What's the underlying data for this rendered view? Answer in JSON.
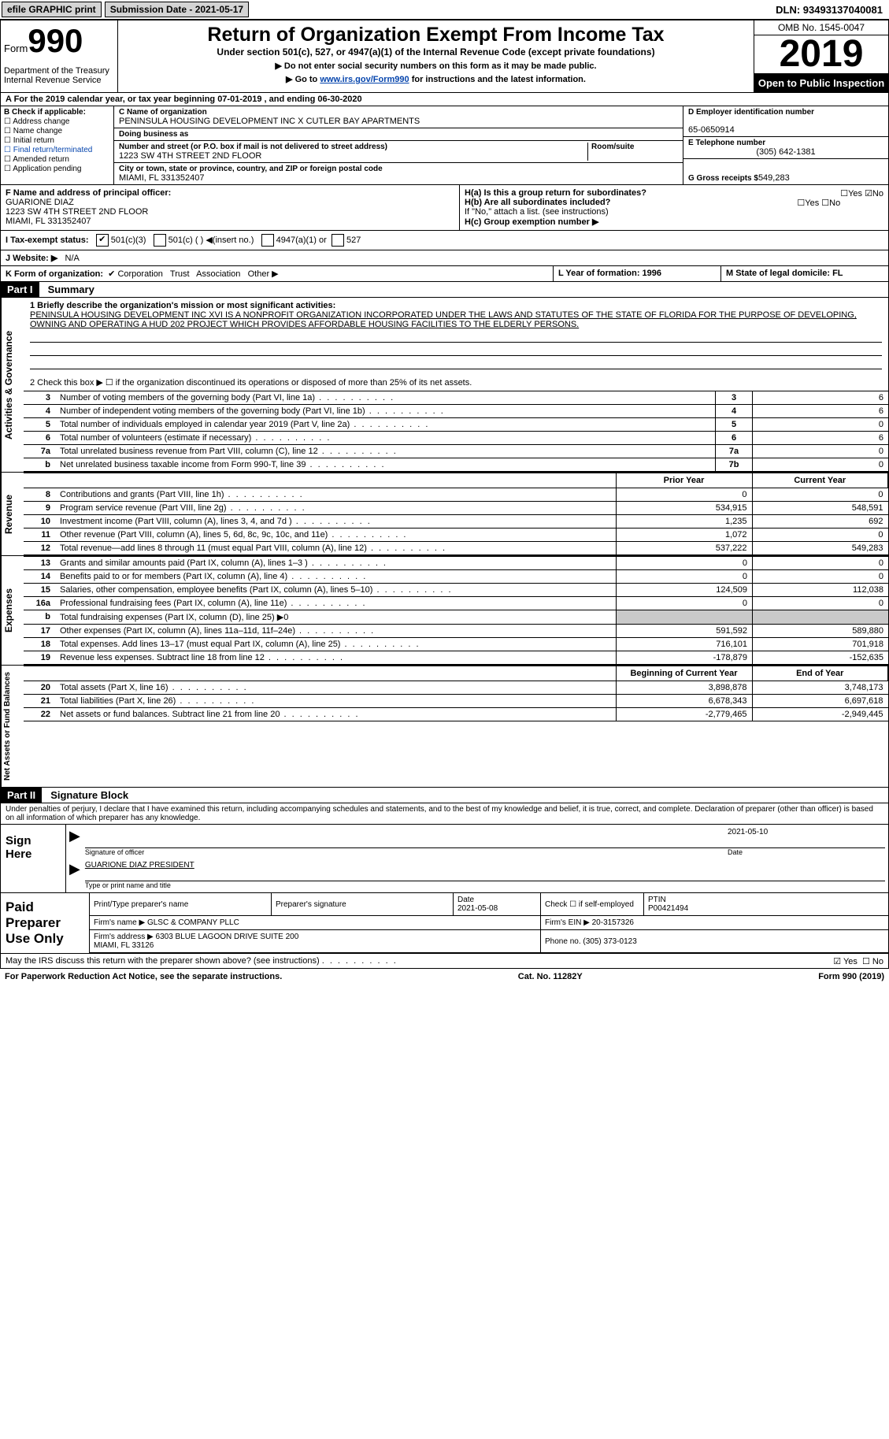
{
  "topbar": {
    "efile": "efile GRAPHIC print",
    "submission": "Submission Date - 2021-05-17",
    "dln": "DLN: 93493137040081"
  },
  "header": {
    "form_prefix": "Form",
    "form_num": "990",
    "dept": "Department of the Treasury\nInternal Revenue Service",
    "title": "Return of Organization Exempt From Income Tax",
    "subtitle": "Under section 501(c), 527, or 4947(a)(1) of the Internal Revenue Code (except private foundations)",
    "instr1": "▶ Do not enter social security numbers on this form as it may be made public.",
    "instr2_pre": "▶ Go to ",
    "instr2_link": "www.irs.gov/Form990",
    "instr2_post": " for instructions and the latest information.",
    "omb": "OMB No. 1545-0047",
    "year": "2019",
    "open": "Open to Public Inspection"
  },
  "period": "A For the 2019 calendar year, or tax year beginning 07-01-2019     , and ending 06-30-2020",
  "section_b": {
    "label": "B Check if applicable:",
    "items": [
      "Address change",
      "Name change",
      "Initial return",
      "Final return/terminated",
      "Amended return",
      "Application pending"
    ]
  },
  "section_c": {
    "name_label": "C Name of organization",
    "name": "PENINSULA HOUSING DEVELOPMENT INC X CUTLER BAY APARTMENTS",
    "dba_label": "Doing business as",
    "addr_label": "Number and street (or P.O. box if mail is not delivered to street address)",
    "room_label": "Room/suite",
    "addr": "1223 SW 4TH STREET 2ND FLOOR",
    "city_label": "City or town, state or province, country, and ZIP or foreign postal code",
    "city": "MIAMI, FL  331352407"
  },
  "section_d": {
    "ein_label": "D Employer identification number",
    "ein": "65-0650914",
    "phone_label": "E Telephone number",
    "phone": "(305) 642-1381",
    "gross_label": "G Gross receipts $",
    "gross": "549,283"
  },
  "section_f": {
    "label": "F  Name and address of principal officer:",
    "name": "GUARIONE DIAZ",
    "addr1": "1223 SW 4TH STREET 2ND FLOOR",
    "addr2": "MIAMI, FL  331352407"
  },
  "section_h": {
    "ha": "H(a)  Is this a group return for subordinates?",
    "hb": "H(b)  Are all subordinates included?",
    "hb_note": "If \"No,\" attach a list. (see instructions)",
    "hc": "H(c)  Group exemption number ▶"
  },
  "tax_exempt": {
    "label": "I  Tax-exempt status:",
    "o1": "501(c)(3)",
    "o2": "501(c) (  ) ◀(insert no.)",
    "o3": "4947(a)(1) or",
    "o4": "527"
  },
  "website": {
    "label": "J  Website: ▶",
    "value": "N/A"
  },
  "k_row": {
    "label": "K Form of organization:",
    "o1": "Corporation",
    "o2": "Trust",
    "o3": "Association",
    "o4": "Other ▶"
  },
  "lm": {
    "l": "L Year of formation: 1996",
    "m": "M State of legal domicile: FL"
  },
  "part1": {
    "header": "Part I",
    "title": "Summary",
    "q1": "1  Briefly describe the organization's mission or most significant activities:",
    "mission": "PENINSULA HOUSING DEVELOPMENT INC XVI IS A NONPROFIT ORGANIZATION INCORPORATED UNDER THE LAWS AND STATUTES OF THE STATE OF FLORIDA FOR THE PURPOSE OF DEVELOPING, OWNING AND OPERATING A HUD 202 PROJECT WHICH PROVIDES AFFORDABLE HOUSING FACILITIES TO THE ELDERLY PERSONS.",
    "q2": "2    Check this box ▶ ☐  if the organization discontinued its operations or disposed of more than 25% of its net assets.",
    "governance_label": "Activities & Governance",
    "revenue_label": "Revenue",
    "expenses_label": "Expenses",
    "netassets_label": "Net Assets or Fund Balances",
    "rows_gov": [
      {
        "n": "3",
        "text": "Number of voting members of the governing body (Part VI, line 1a)",
        "box": "3",
        "val": "6"
      },
      {
        "n": "4",
        "text": "Number of independent voting members of the governing body (Part VI, line 1b)",
        "box": "4",
        "val": "6"
      },
      {
        "n": "5",
        "text": "Total number of individuals employed in calendar year 2019 (Part V, line 2a)",
        "box": "5",
        "val": "0"
      },
      {
        "n": "6",
        "text": "Total number of volunteers (estimate if necessary)",
        "box": "6",
        "val": "6"
      },
      {
        "n": "7a",
        "text": "Total unrelated business revenue from Part VIII, column (C), line 12",
        "box": "7a",
        "val": "0"
      },
      {
        "n": "b",
        "text": "Net unrelated business taxable income from Form 990-T, line 39",
        "box": "7b",
        "val": "0"
      }
    ],
    "col_headers": {
      "prior": "Prior Year",
      "current": "Current Year"
    },
    "rows_rev": [
      {
        "n": "8",
        "text": "Contributions and grants (Part VIII, line 1h)",
        "p": "0",
        "c": "0"
      },
      {
        "n": "9",
        "text": "Program service revenue (Part VIII, line 2g)",
        "p": "534,915",
        "c": "548,591"
      },
      {
        "n": "10",
        "text": "Investment income (Part VIII, column (A), lines 3, 4, and 7d )",
        "p": "1,235",
        "c": "692"
      },
      {
        "n": "11",
        "text": "Other revenue (Part VIII, column (A), lines 5, 6d, 8c, 9c, 10c, and 11e)",
        "p": "1,072",
        "c": "0"
      },
      {
        "n": "12",
        "text": "Total revenue—add lines 8 through 11 (must equal Part VIII, column (A), line 12)",
        "p": "537,222",
        "c": "549,283"
      }
    ],
    "rows_exp": [
      {
        "n": "13",
        "text": "Grants and similar amounts paid (Part IX, column (A), lines 1–3 )",
        "p": "0",
        "c": "0"
      },
      {
        "n": "14",
        "text": "Benefits paid to or for members (Part IX, column (A), line 4)",
        "p": "0",
        "c": "0"
      },
      {
        "n": "15",
        "text": "Salaries, other compensation, employee benefits (Part IX, column (A), lines 5–10)",
        "p": "124,509",
        "c": "112,038"
      },
      {
        "n": "16a",
        "text": "Professional fundraising fees (Part IX, column (A), line 11e)",
        "p": "0",
        "c": "0"
      },
      {
        "n": "b",
        "text": "Total fundraising expenses (Part IX, column (D), line 25) ▶0",
        "p": "",
        "c": "",
        "grey": true
      },
      {
        "n": "17",
        "text": "Other expenses (Part IX, column (A), lines 11a–11d, 11f–24e)",
        "p": "591,592",
        "c": "589,880"
      },
      {
        "n": "18",
        "text": "Total expenses. Add lines 13–17 (must equal Part IX, column (A), line 25)",
        "p": "716,101",
        "c": "701,918"
      },
      {
        "n": "19",
        "text": "Revenue less expenses. Subtract line 18 from line 12",
        "p": "-178,879",
        "c": "-152,635"
      }
    ],
    "col_headers2": {
      "begin": "Beginning of Current Year",
      "end": "End of Year"
    },
    "rows_net": [
      {
        "n": "20",
        "text": "Total assets (Part X, line 16)",
        "p": "3,898,878",
        "c": "3,748,173"
      },
      {
        "n": "21",
        "text": "Total liabilities (Part X, line 26)",
        "p": "6,678,343",
        "c": "6,697,618"
      },
      {
        "n": "22",
        "text": "Net assets or fund balances. Subtract line 21 from line 20",
        "p": "-2,779,465",
        "c": "-2,949,445"
      }
    ]
  },
  "part2": {
    "header": "Part II",
    "title": "Signature Block",
    "penalties": "Under penalties of perjury, I declare that I have examined this return, including accompanying schedules and statements, and to the best of my knowledge and belief, it is true, correct, and complete. Declaration of preparer (other than officer) is based on all information of which preparer has any knowledge.",
    "sign_label": "Sign Here",
    "sig_officer": "Signature of officer",
    "sig_date": "Date",
    "sig_date_val": "2021-05-10",
    "sig_name": "GUARIONE DIAZ  PRESIDENT",
    "sig_name_label": "Type or print name and title",
    "paid_label": "Paid Preparer Use Only",
    "p1": "Print/Type preparer's name",
    "p2": "Preparer's signature",
    "p3": "Date",
    "p3v": "2021-05-08",
    "p4": "Check ☐ if self-employed",
    "p5": "PTIN",
    "p5v": "P00421494",
    "firm_name_l": "Firm's name   ▶",
    "firm_name": "GLSC & COMPANY PLLC",
    "firm_ein_l": "Firm's EIN ▶",
    "firm_ein": "20-3157326",
    "firm_addr_l": "Firm's address ▶",
    "firm_addr": "6303 BLUE LAGOON DRIVE SUITE 200\nMIAMI, FL  33126",
    "firm_phone_l": "Phone no.",
    "firm_phone": "(305) 373-0123",
    "discuss": "May the IRS discuss this return with the preparer shown above? (see instructions)"
  },
  "footer": {
    "left": "For Paperwork Reduction Act Notice, see the separate instructions.",
    "mid": "Cat. No. 11282Y",
    "right": "Form 990 (2019)"
  }
}
